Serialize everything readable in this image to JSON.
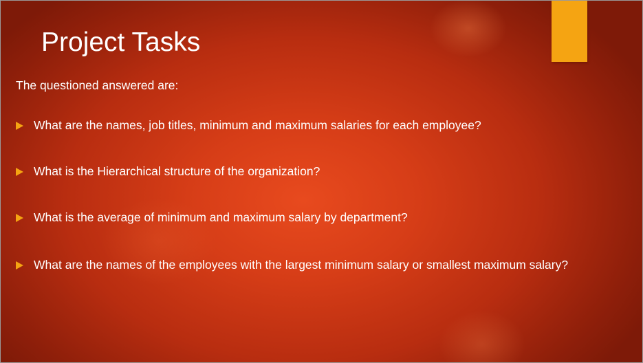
{
  "slide": {
    "title": "Project Tasks",
    "intro": "The questioned answered are:",
    "bullets": [
      "What are the names, job titles, minimum and maximum salaries for each employee?",
      "What is the Hierarchical structure of the organization?",
      "What is the average of minimum and maximum salary by department?",
      "What are the names of the employees with the largest minimum salary or smallest maximum salary?"
    ],
    "bullet_icon": "triangle-right-icon"
  },
  "colors": {
    "background_center": "#e84a1e",
    "background_edge": "#7e1a08",
    "accent": "#f5a412",
    "text": "#ffffff"
  }
}
